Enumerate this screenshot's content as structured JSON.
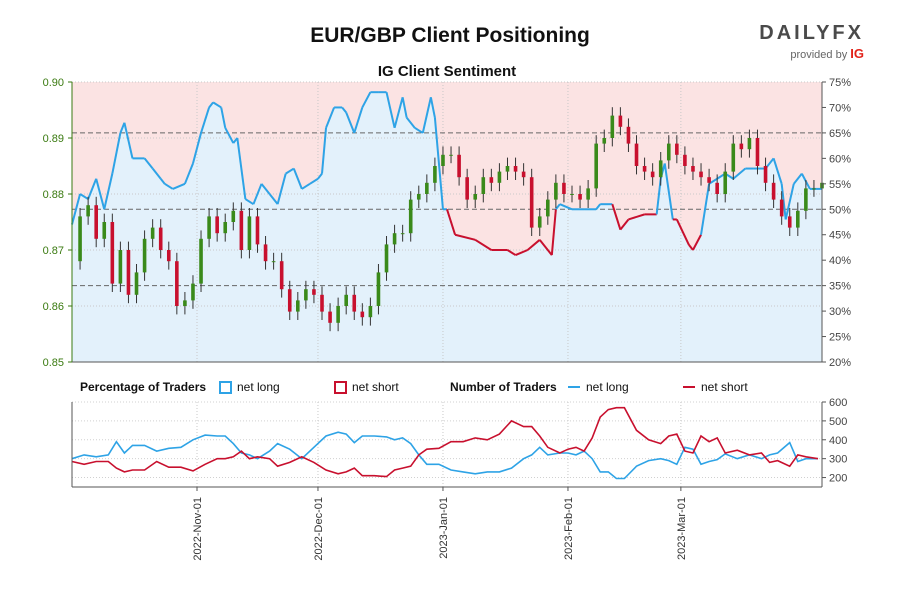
{
  "header": {
    "title": "EUR/GBP Client Positioning",
    "subtitle": "IG Client Sentiment",
    "brand": "DAILYFX",
    "brand_provided_by": "provided by",
    "brand_ig": "IG"
  },
  "legend": {
    "percentage_title": "Percentage of Traders",
    "pct_long": "net long",
    "pct_short": "net short",
    "number_title": "Number of Traders",
    "num_long": "net long",
    "num_short": "net short"
  },
  "colors": {
    "long": "#2ea3e6",
    "short": "#c8102e",
    "bullish": "#3a8a1a",
    "bearish": "#c8102e",
    "long_zone": "#e3f1fb",
    "short_zone": "#fbe3e3",
    "price_axis": "#3a7a10"
  },
  "chart_data": [
    {
      "type": "line",
      "name": "price-and-sentiment",
      "x_ticks": [
        "2022-Nov-01",
        "2022-Dec-01",
        "2023-Jan-01",
        "2023-Feb-01",
        "2023-Mar-01"
      ],
      "x_tick_days": [
        31,
        61,
        92,
        123,
        151
      ],
      "x_range_days": [
        0,
        186
      ],
      "left_axis": {
        "ticks": [
          "0.90",
          "0.89",
          "0.88",
          "0.87",
          "0.86",
          "0.85"
        ],
        "ylim": [
          0.85,
          0.9
        ]
      },
      "right_axis": {
        "ticks": [
          "75%",
          "70%",
          "65%",
          "60%",
          "55%",
          "50%",
          "45%",
          "40%",
          "35%",
          "30%",
          "25%",
          "20%"
        ],
        "ylim": [
          20,
          75
        ]
      },
      "reference_lines_pct": [
        65,
        50,
        35
      ],
      "net_long_pct": [
        [
          0,
          47
        ],
        [
          2,
          53
        ],
        [
          4,
          52
        ],
        [
          6,
          56
        ],
        [
          8,
          50
        ],
        [
          10,
          57
        ],
        [
          12,
          65
        ],
        [
          13,
          67
        ],
        [
          15,
          60
        ],
        [
          18,
          60
        ],
        [
          20,
          58
        ],
        [
          22,
          56
        ],
        [
          23,
          55
        ],
        [
          25,
          54
        ],
        [
          28,
          55
        ],
        [
          30,
          59
        ],
        [
          32,
          65
        ],
        [
          34,
          70
        ],
        [
          35,
          71
        ],
        [
          37,
          70
        ],
        [
          38,
          66
        ],
        [
          40,
          63
        ],
        [
          41,
          64
        ],
        [
          43,
          52
        ],
        [
          45,
          51
        ],
        [
          47,
          55
        ],
        [
          49,
          53
        ],
        [
          51,
          51
        ],
        [
          53,
          57
        ],
        [
          55,
          58
        ],
        [
          57,
          54
        ],
        [
          59,
          55
        ],
        [
          61,
          56
        ],
        [
          62,
          57
        ],
        [
          63,
          66
        ],
        [
          65,
          70
        ],
        [
          67,
          70
        ],
        [
          68,
          69
        ],
        [
          70,
          65
        ],
        [
          72,
          70
        ],
        [
          74,
          73
        ],
        [
          76,
          73
        ],
        [
          78,
          73
        ],
        [
          80,
          66
        ],
        [
          82,
          72
        ],
        [
          83,
          68
        ],
        [
          85,
          66
        ],
        [
          87,
          65
        ],
        [
          89,
          72
        ],
        [
          90,
          68
        ],
        [
          92,
          50
        ],
        [
          93,
          50
        ],
        [
          95,
          45
        ],
        [
          100,
          44
        ],
        [
          104,
          42
        ],
        [
          108,
          42
        ],
        [
          110,
          41
        ],
        [
          113,
          42
        ],
        [
          116,
          44
        ],
        [
          119,
          41
        ],
        [
          120,
          50
        ],
        [
          121,
          51
        ],
        [
          124,
          50
        ],
        [
          127,
          50
        ],
        [
          130,
          50
        ],
        [
          131,
          51
        ],
        [
          134,
          51
        ],
        [
          136,
          46
        ],
        [
          138,
          48
        ],
        [
          142,
          49
        ],
        [
          145,
          49
        ],
        [
          146,
          56
        ],
        [
          147,
          59
        ],
        [
          149,
          48
        ],
        [
          150,
          48
        ],
        [
          153,
          43
        ],
        [
          154,
          42
        ],
        [
          156,
          45
        ],
        [
          158,
          55
        ],
        [
          160,
          56
        ],
        [
          162,
          57
        ],
        [
          164,
          56
        ],
        [
          167,
          58
        ],
        [
          169,
          58
        ],
        [
          172,
          58
        ],
        [
          174,
          60
        ],
        [
          176,
          55
        ],
        [
          177,
          48
        ],
        [
          179,
          55
        ],
        [
          181,
          57
        ],
        [
          183,
          54
        ],
        [
          186,
          54
        ]
      ],
      "price_ohlc_close": [
        [
          0,
          0.868
        ],
        [
          2,
          0.876
        ],
        [
          4,
          0.878
        ],
        [
          6,
          0.872
        ],
        [
          8,
          0.875
        ],
        [
          10,
          0.864
        ],
        [
          12,
          0.87
        ],
        [
          14,
          0.862
        ],
        [
          16,
          0.866
        ],
        [
          18,
          0.872
        ],
        [
          20,
          0.874
        ],
        [
          22,
          0.87
        ],
        [
          24,
          0.868
        ],
        [
          26,
          0.86
        ],
        [
          28,
          0.861
        ],
        [
          30,
          0.864
        ],
        [
          32,
          0.872
        ],
        [
          34,
          0.876
        ],
        [
          36,
          0.873
        ],
        [
          38,
          0.875
        ],
        [
          40,
          0.877
        ],
        [
          42,
          0.87
        ],
        [
          44,
          0.876
        ],
        [
          46,
          0.871
        ],
        [
          48,
          0.868
        ],
        [
          50,
          0.868
        ],
        [
          52,
          0.863
        ],
        [
          54,
          0.859
        ],
        [
          56,
          0.861
        ],
        [
          58,
          0.863
        ],
        [
          60,
          0.862
        ],
        [
          62,
          0.859
        ],
        [
          64,
          0.857
        ],
        [
          66,
          0.86
        ],
        [
          68,
          0.862
        ],
        [
          70,
          0.859
        ],
        [
          72,
          0.858
        ],
        [
          74,
          0.86
        ],
        [
          76,
          0.866
        ],
        [
          78,
          0.871
        ],
        [
          80,
          0.873
        ],
        [
          82,
          0.873
        ],
        [
          84,
          0.879
        ],
        [
          86,
          0.88
        ],
        [
          88,
          0.882
        ],
        [
          90,
          0.885
        ],
        [
          92,
          0.887
        ],
        [
          94,
          0.887
        ],
        [
          96,
          0.883
        ],
        [
          98,
          0.879
        ],
        [
          100,
          0.88
        ],
        [
          102,
          0.883
        ],
        [
          104,
          0.882
        ],
        [
          106,
          0.884
        ],
        [
          108,
          0.885
        ],
        [
          110,
          0.884
        ],
        [
          112,
          0.883
        ],
        [
          114,
          0.874
        ],
        [
          116,
          0.876
        ],
        [
          118,
          0.879
        ],
        [
          120,
          0.882
        ],
        [
          122,
          0.88
        ],
        [
          124,
          0.88
        ],
        [
          126,
          0.879
        ],
        [
          128,
          0.881
        ],
        [
          130,
          0.889
        ],
        [
          132,
          0.89
        ],
        [
          134,
          0.894
        ],
        [
          136,
          0.892
        ],
        [
          138,
          0.889
        ],
        [
          140,
          0.885
        ],
        [
          142,
          0.884
        ],
        [
          144,
          0.883
        ],
        [
          146,
          0.886
        ],
        [
          148,
          0.889
        ],
        [
          150,
          0.887
        ],
        [
          152,
          0.885
        ],
        [
          154,
          0.884
        ],
        [
          156,
          0.883
        ],
        [
          158,
          0.882
        ],
        [
          160,
          0.88
        ],
        [
          162,
          0.884
        ],
        [
          164,
          0.889
        ],
        [
          166,
          0.888
        ],
        [
          168,
          0.89
        ],
        [
          170,
          0.885
        ],
        [
          172,
          0.882
        ],
        [
          174,
          0.879
        ],
        [
          176,
          0.876
        ],
        [
          178,
          0.874
        ],
        [
          180,
          0.877
        ],
        [
          182,
          0.881
        ],
        [
          184,
          0.881
        ],
        [
          186,
          0.882
        ]
      ]
    },
    {
      "type": "line",
      "name": "number-of-traders",
      "right_axis": {
        "ticks": [
          "600",
          "500",
          "400",
          "300",
          "200"
        ],
        "ylim": [
          150,
          600
        ]
      },
      "net_long_count": [
        [
          0,
          300
        ],
        [
          3,
          320
        ],
        [
          6,
          310
        ],
        [
          9,
          320
        ],
        [
          11,
          390
        ],
        [
          13,
          330
        ],
        [
          15,
          370
        ],
        [
          18,
          370
        ],
        [
          21,
          340
        ],
        [
          24,
          355
        ],
        [
          27,
          360
        ],
        [
          30,
          400
        ],
        [
          33,
          425
        ],
        [
          36,
          420
        ],
        [
          38,
          420
        ],
        [
          40,
          380
        ],
        [
          42,
          330
        ],
        [
          44,
          320
        ],
        [
          46,
          300
        ],
        [
          49,
          340
        ],
        [
          51,
          380
        ],
        [
          54,
          350
        ],
        [
          57,
          300
        ],
        [
          60,
          360
        ],
        [
          63,
          420
        ],
        [
          66,
          440
        ],
        [
          68,
          430
        ],
        [
          70,
          385
        ],
        [
          72,
          420
        ],
        [
          75,
          420
        ],
        [
          78,
          415
        ],
        [
          80,
          400
        ],
        [
          82,
          410
        ],
        [
          84,
          380
        ],
        [
          86,
          320
        ],
        [
          88,
          270
        ],
        [
          91,
          270
        ],
        [
          94,
          240
        ],
        [
          97,
          230
        ],
        [
          100,
          220
        ],
        [
          103,
          230
        ],
        [
          106,
          230
        ],
        [
          109,
          250
        ],
        [
          112,
          300
        ],
        [
          114,
          320
        ],
        [
          116,
          360
        ],
        [
          118,
          320
        ],
        [
          121,
          330
        ],
        [
          123,
          330
        ],
        [
          125,
          320
        ],
        [
          127,
          340
        ],
        [
          129,
          300
        ],
        [
          131,
          230
        ],
        [
          133,
          230
        ],
        [
          135,
          195
        ],
        [
          137,
          195
        ],
        [
          140,
          260
        ],
        [
          143,
          290
        ],
        [
          146,
          300
        ],
        [
          148,
          290
        ],
        [
          150,
          270
        ],
        [
          152,
          360
        ],
        [
          154,
          350
        ],
        [
          156,
          270
        ],
        [
          158,
          285
        ],
        [
          160,
          295
        ],
        [
          162,
          325
        ],
        [
          165,
          300
        ],
        [
          168,
          320
        ],
        [
          171,
          300
        ],
        [
          173,
          320
        ],
        [
          175,
          330
        ],
        [
          178,
          385
        ],
        [
          180,
          285
        ],
        [
          182,
          300
        ],
        [
          185,
          300
        ]
      ],
      "net_short_count": [
        [
          0,
          285
        ],
        [
          3,
          270
        ],
        [
          6,
          285
        ],
        [
          9,
          285
        ],
        [
          11,
          250
        ],
        [
          13,
          230
        ],
        [
          15,
          240
        ],
        [
          18,
          240
        ],
        [
          21,
          285
        ],
        [
          24,
          255
        ],
        [
          27,
          255
        ],
        [
          30,
          235
        ],
        [
          33,
          270
        ],
        [
          36,
          300
        ],
        [
          38,
          300
        ],
        [
          40,
          310
        ],
        [
          42,
          340
        ],
        [
          44,
          300
        ],
        [
          46,
          310
        ],
        [
          49,
          300
        ],
        [
          51,
          260
        ],
        [
          54,
          280
        ],
        [
          57,
          310
        ],
        [
          60,
          280
        ],
        [
          63,
          240
        ],
        [
          66,
          220
        ],
        [
          68,
          230
        ],
        [
          70,
          250
        ],
        [
          72,
          210
        ],
        [
          75,
          210
        ],
        [
          78,
          205
        ],
        [
          80,
          240
        ],
        [
          82,
          250
        ],
        [
          84,
          260
        ],
        [
          86,
          320
        ],
        [
          88,
          350
        ],
        [
          91,
          355
        ],
        [
          94,
          390
        ],
        [
          97,
          390
        ],
        [
          100,
          410
        ],
        [
          103,
          400
        ],
        [
          106,
          430
        ],
        [
          109,
          500
        ],
        [
          112,
          470
        ],
        [
          114,
          470
        ],
        [
          116,
          420
        ],
        [
          118,
          360
        ],
        [
          121,
          330
        ],
        [
          123,
          350
        ],
        [
          125,
          360
        ],
        [
          127,
          340
        ],
        [
          129,
          410
        ],
        [
          131,
          520
        ],
        [
          133,
          560
        ],
        [
          135,
          570
        ],
        [
          137,
          570
        ],
        [
          140,
          450
        ],
        [
          143,
          400
        ],
        [
          146,
          380
        ],
        [
          148,
          420
        ],
        [
          150,
          430
        ],
        [
          152,
          340
        ],
        [
          154,
          330
        ],
        [
          156,
          420
        ],
        [
          158,
          390
        ],
        [
          160,
          410
        ],
        [
          162,
          330
        ],
        [
          165,
          345
        ],
        [
          168,
          320
        ],
        [
          171,
          330
        ],
        [
          173,
          280
        ],
        [
          175,
          290
        ],
        [
          178,
          260
        ],
        [
          180,
          320
        ],
        [
          182,
          310
        ],
        [
          185,
          300
        ]
      ]
    }
  ]
}
